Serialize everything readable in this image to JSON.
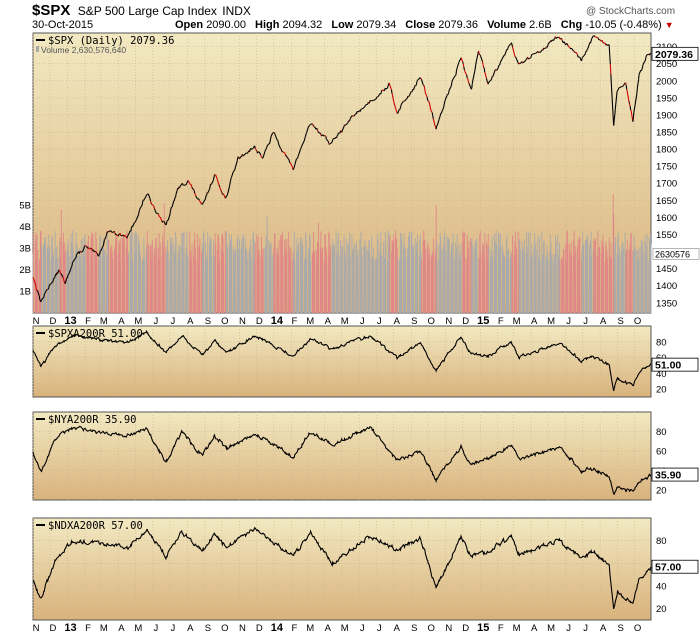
{
  "header": {
    "symbol": "$SPX",
    "description": "S&P 500 Large Cap Index",
    "exchange": "INDX",
    "date": "30-Oct-2015",
    "open_label": "Open",
    "open": "2090.00",
    "high_label": "High",
    "high": "2094.32",
    "low_label": "Low",
    "low": "2079.34",
    "close_label": "Close",
    "close": "2079.36",
    "volume_label": "Volume",
    "volume": "2.6B",
    "chg_label": "Chg",
    "chg": "-10.05 (-0.48%)",
    "watermark": "@ StockCharts.com"
  },
  "colors": {
    "price_down": "#cc0000",
    "price_up": "#000000",
    "volume_up": "#aaaaaa",
    "volume_down": "#e08888",
    "panel_top": "#f2e9c2",
    "panel_bottom": "#d9b27c"
  },
  "chart_data": [
    {
      "type": "line",
      "title": "$SPX (Daily) 2079.36",
      "subtitle": "Volume 2,630,576,640",
      "last_value_label": "2079.36",
      "ylim": [
        1320,
        2140
      ],
      "yticks": [
        1350,
        1400,
        1450,
        1500,
        1550,
        1600,
        1650,
        1700,
        1750,
        1800,
        1850,
        1900,
        1950,
        2000,
        2050,
        2100
      ],
      "y_tick_labels": [
        "1350",
        "1400",
        "1450",
        "1500",
        "1550",
        "1600",
        "1650",
        "1700",
        "1750",
        "1800",
        "1850",
        "1900",
        "1950",
        "2000",
        "2050",
        "2100"
      ],
      "x_start": "2012-11-01",
      "x_end": "2015-10-30",
      "points": [
        [
          "2012-11-01",
          1427
        ],
        [
          "2012-11-15",
          1353
        ],
        [
          "2012-12-03",
          1409
        ],
        [
          "2012-12-18",
          1446
        ],
        [
          "2012-12-28",
          1402
        ],
        [
          "2013-01-10",
          1472
        ],
        [
          "2013-02-01",
          1513
        ],
        [
          "2013-02-25",
          1488
        ],
        [
          "2013-03-14",
          1563
        ],
        [
          "2013-04-18",
          1541
        ],
        [
          "2013-05-21",
          1669
        ],
        [
          "2013-06-24",
          1573
        ],
        [
          "2013-07-15",
          1682
        ],
        [
          "2013-08-02",
          1709
        ],
        [
          "2013-08-27",
          1630
        ],
        [
          "2013-09-18",
          1725
        ],
        [
          "2013-10-08",
          1655
        ],
        [
          "2013-10-29",
          1772
        ],
        [
          "2013-11-27",
          1807
        ],
        [
          "2013-12-13",
          1775
        ],
        [
          "2013-12-31",
          1848
        ],
        [
          "2014-02-04",
          1741
        ],
        [
          "2014-03-07",
          1878
        ],
        [
          "2014-04-11",
          1815
        ],
        [
          "2014-05-23",
          1900
        ],
        [
          "2014-07-24",
          1988
        ],
        [
          "2014-08-07",
          1909
        ],
        [
          "2014-09-18",
          2011
        ],
        [
          "2014-10-15",
          1862
        ],
        [
          "2014-11-28",
          2068
        ],
        [
          "2014-12-16",
          1972
        ],
        [
          "2014-12-29",
          2090
        ],
        [
          "2015-01-15",
          1992
        ],
        [
          "2015-02-25",
          2115
        ],
        [
          "2015-03-10",
          2044
        ],
        [
          "2015-05-21",
          2131
        ],
        [
          "2015-06-29",
          2057
        ],
        [
          "2015-07-20",
          2128
        ],
        [
          "2015-08-17",
          2102
        ],
        [
          "2015-08-25",
          1868
        ],
        [
          "2015-08-31",
          1972
        ],
        [
          "2015-09-15",
          1988
        ],
        [
          "2015-09-28",
          1882
        ],
        [
          "2015-10-09",
          2015
        ],
        [
          "2015-10-23",
          2075
        ],
        [
          "2015-10-30",
          2079
        ]
      ],
      "volume": {
        "axis_labels": [
          "1B",
          "2B",
          "3B",
          "4B",
          "5B"
        ],
        "ylim_billions": [
          0,
          13
        ],
        "last_label": "2630576",
        "typical_billions": 3.2,
        "spikes": [
          [
            "2012-12-21",
            4.8
          ],
          [
            "2013-06-21",
            5.1
          ],
          [
            "2013-12-20",
            4.5
          ],
          [
            "2014-03-21",
            4.2
          ],
          [
            "2014-10-15",
            5.0
          ],
          [
            "2015-08-24",
            5.5
          ],
          [
            "2015-08-25",
            4.6
          ]
        ]
      },
      "x_tick_labels": [
        [
          "2012-11-01",
          "N"
        ],
        [
          "2012-12-01",
          "D"
        ],
        [
          "2013-01-01",
          "13"
        ],
        [
          "2013-02-01",
          "F"
        ],
        [
          "2013-03-01",
          "M"
        ],
        [
          "2013-04-01",
          "A"
        ],
        [
          "2013-05-01",
          "M"
        ],
        [
          "2013-06-01",
          "J"
        ],
        [
          "2013-07-01",
          "J"
        ],
        [
          "2013-08-01",
          "A"
        ],
        [
          "2013-09-01",
          "S"
        ],
        [
          "2013-10-01",
          "O"
        ],
        [
          "2013-11-01",
          "N"
        ],
        [
          "2013-12-01",
          "D"
        ],
        [
          "2014-01-01",
          "14"
        ],
        [
          "2014-02-01",
          "F"
        ],
        [
          "2014-03-01",
          "M"
        ],
        [
          "2014-04-01",
          "A"
        ],
        [
          "2014-05-01",
          "M"
        ],
        [
          "2014-06-01",
          "J"
        ],
        [
          "2014-07-01",
          "J"
        ],
        [
          "2014-08-01",
          "A"
        ],
        [
          "2014-09-01",
          "S"
        ],
        [
          "2014-10-01",
          "O"
        ],
        [
          "2014-11-01",
          "N"
        ],
        [
          "2014-12-01",
          "D"
        ],
        [
          "2015-01-01",
          "15"
        ],
        [
          "2015-02-01",
          "F"
        ],
        [
          "2015-03-01",
          "M"
        ],
        [
          "2015-04-01",
          "A"
        ],
        [
          "2015-05-01",
          "M"
        ],
        [
          "2015-06-01",
          "J"
        ],
        [
          "2015-07-01",
          "J"
        ],
        [
          "2015-08-01",
          "A"
        ],
        [
          "2015-09-01",
          "S"
        ],
        [
          "2015-10-01",
          "O"
        ]
      ]
    },
    {
      "type": "line",
      "title": "$SPXA200R 51.00",
      "last_value_label": "51.00",
      "ylim": [
        10,
        100
      ],
      "yticks": [
        20,
        40,
        60,
        80
      ],
      "y_tick_labels": [
        "20",
        "40",
        "60",
        "80"
      ],
      "points": [
        [
          "2012-11-01",
          70
        ],
        [
          "2012-11-15",
          48
        ],
        [
          "2012-12-10",
          75
        ],
        [
          "2013-01-08",
          88
        ],
        [
          "2013-04-18",
          78
        ],
        [
          "2013-05-21",
          92
        ],
        [
          "2013-06-24",
          66
        ],
        [
          "2013-07-22",
          88
        ],
        [
          "2013-08-27",
          62
        ],
        [
          "2013-09-18",
          82
        ],
        [
          "2013-10-09",
          66
        ],
        [
          "2013-11-29",
          88
        ],
        [
          "2014-02-04",
          62
        ],
        [
          "2014-03-07",
          84
        ],
        [
          "2014-04-14",
          70
        ],
        [
          "2014-06-20",
          88
        ],
        [
          "2014-08-07",
          60
        ],
        [
          "2014-09-18",
          78
        ],
        [
          "2014-10-15",
          44
        ],
        [
          "2014-11-28",
          86
        ],
        [
          "2014-12-16",
          64
        ],
        [
          "2015-01-15",
          62
        ],
        [
          "2015-02-25",
          80
        ],
        [
          "2015-03-11",
          60
        ],
        [
          "2015-05-21",
          78
        ],
        [
          "2015-06-29",
          56
        ],
        [
          "2015-07-20",
          60
        ],
        [
          "2015-08-17",
          52
        ],
        [
          "2015-08-25",
          18
        ],
        [
          "2015-09-01",
          34
        ],
        [
          "2015-09-28",
          24
        ],
        [
          "2015-10-09",
          42
        ],
        [
          "2015-10-30",
          51
        ]
      ]
    },
    {
      "type": "line",
      "title": "$NYA200R 35.90",
      "last_value_label": "35.90",
      "ylim": [
        10,
        100
      ],
      "yticks": [
        20,
        40,
        60,
        80
      ],
      "y_tick_labels": [
        "20",
        "40",
        "60",
        "80"
      ],
      "points": [
        [
          "2012-11-01",
          60
        ],
        [
          "2012-11-15",
          38
        ],
        [
          "2012-12-10",
          72
        ],
        [
          "2013-01-08",
          84
        ],
        [
          "2013-04-18",
          76
        ],
        [
          "2013-05-21",
          84
        ],
        [
          "2013-06-24",
          48
        ],
        [
          "2013-07-22",
          80
        ],
        [
          "2013-08-27",
          55
        ],
        [
          "2013-09-18",
          76
        ],
        [
          "2013-10-09",
          62
        ],
        [
          "2013-11-29",
          78
        ],
        [
          "2014-02-04",
          54
        ],
        [
          "2014-03-07",
          80
        ],
        [
          "2014-04-14",
          66
        ],
        [
          "2014-06-20",
          84
        ],
        [
          "2014-08-07",
          50
        ],
        [
          "2014-09-18",
          60
        ],
        [
          "2014-10-15",
          30
        ],
        [
          "2014-11-28",
          64
        ],
        [
          "2014-12-16",
          46
        ],
        [
          "2015-01-15",
          52
        ],
        [
          "2015-02-25",
          66
        ],
        [
          "2015-03-11",
          52
        ],
        [
          "2015-05-21",
          64
        ],
        [
          "2015-06-29",
          40
        ],
        [
          "2015-07-20",
          42
        ],
        [
          "2015-08-17",
          34
        ],
        [
          "2015-08-25",
          16
        ],
        [
          "2015-09-01",
          24
        ],
        [
          "2015-09-28",
          18
        ],
        [
          "2015-10-09",
          30
        ],
        [
          "2015-10-30",
          36
        ]
      ]
    },
    {
      "type": "line",
      "title": "$NDXA200R 57.00",
      "last_value_label": "57.00",
      "ylim": [
        10,
        100
      ],
      "yticks": [
        20,
        40,
        60,
        80
      ],
      "y_tick_labels": [
        "20",
        "40",
        "60",
        "80"
      ],
      "points": [
        [
          "2012-11-01",
          45
        ],
        [
          "2012-11-15",
          28
        ],
        [
          "2012-12-10",
          62
        ],
        [
          "2013-01-08",
          80
        ],
        [
          "2013-04-18",
          75
        ],
        [
          "2013-05-21",
          90
        ],
        [
          "2013-06-24",
          66
        ],
        [
          "2013-07-22",
          88
        ],
        [
          "2013-08-27",
          70
        ],
        [
          "2013-09-18",
          86
        ],
        [
          "2013-10-09",
          74
        ],
        [
          "2013-11-29",
          90
        ],
        [
          "2014-02-04",
          66
        ],
        [
          "2014-03-07",
          86
        ],
        [
          "2014-04-14",
          60
        ],
        [
          "2014-06-20",
          84
        ],
        [
          "2014-08-07",
          72
        ],
        [
          "2014-09-18",
          82
        ],
        [
          "2014-10-15",
          38
        ],
        [
          "2014-11-28",
          84
        ],
        [
          "2014-12-16",
          66
        ],
        [
          "2015-01-15",
          70
        ],
        [
          "2015-02-25",
          84
        ],
        [
          "2015-03-11",
          68
        ],
        [
          "2015-05-21",
          80
        ],
        [
          "2015-06-29",
          64
        ],
        [
          "2015-07-20",
          70
        ],
        [
          "2015-08-17",
          58
        ],
        [
          "2015-08-25",
          20
        ],
        [
          "2015-09-01",
          36
        ],
        [
          "2015-09-28",
          24
        ],
        [
          "2015-10-09",
          46
        ],
        [
          "2015-10-30",
          57
        ]
      ]
    }
  ]
}
